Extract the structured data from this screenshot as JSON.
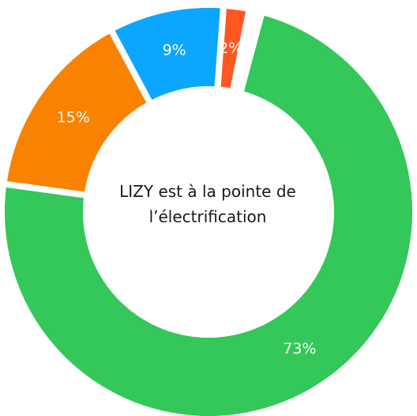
{
  "chart_data": {
    "type": "donut",
    "title": "LIZY est à la pointe de l’électrification",
    "values": [
      73,
      15,
      9,
      2
    ],
    "value_labels": [
      "73%",
      "15%",
      "9%",
      "2%"
    ],
    "colors": [
      "#34c759",
      "#f98200",
      "#0aa6ff",
      "#ff5722"
    ]
  }
}
